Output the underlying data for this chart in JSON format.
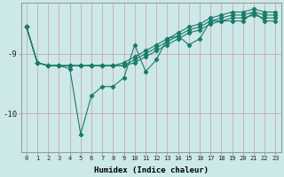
{
  "xlabel": "Humidex (Indice chaleur)",
  "background_color": "#cce8e8",
  "line_color": "#1a7a6a",
  "xlim": [
    -0.5,
    23.5
  ],
  "ylim": [
    -10.65,
    -8.15
  ],
  "yticks": [
    -10,
    -9
  ],
  "xticks": [
    0,
    1,
    2,
    3,
    4,
    5,
    6,
    7,
    8,
    9,
    10,
    11,
    12,
    13,
    14,
    15,
    16,
    17,
    18,
    19,
    20,
    21,
    22,
    23
  ],
  "series": [
    [
      -8.55,
      -9.15,
      -9.2,
      -9.2,
      -9.25,
      -10.35,
      -9.7,
      -9.55,
      -9.55,
      -9.4,
      -8.85,
      -9.3,
      -9.1,
      -8.75,
      -8.7,
      -8.85,
      -8.75,
      -8.45,
      -8.45,
      -8.45,
      -8.45,
      -8.3,
      -8.45,
      -8.45
    ],
    [
      -8.55,
      -9.15,
      -9.2,
      -9.2,
      -9.2,
      -9.2,
      -9.2,
      -9.2,
      -9.2,
      -9.2,
      -9.15,
      -9.05,
      -8.95,
      -8.85,
      -8.75,
      -8.65,
      -8.6,
      -8.5,
      -8.45,
      -8.4,
      -8.4,
      -8.35,
      -8.4,
      -8.4
    ],
    [
      -8.55,
      -9.15,
      -9.2,
      -9.2,
      -9.2,
      -9.2,
      -9.2,
      -9.2,
      -9.2,
      -9.2,
      -9.1,
      -9.0,
      -8.9,
      -8.8,
      -8.7,
      -8.6,
      -8.55,
      -8.45,
      -8.4,
      -8.35,
      -8.35,
      -8.3,
      -8.35,
      -8.35
    ],
    [
      -8.55,
      -9.15,
      -9.2,
      -9.2,
      -9.2,
      -9.2,
      -9.2,
      -9.2,
      -9.2,
      -9.15,
      -9.05,
      -8.95,
      -8.85,
      -8.75,
      -8.65,
      -8.55,
      -8.5,
      -8.4,
      -8.35,
      -8.3,
      -8.3,
      -8.25,
      -8.3,
      -8.3
    ]
  ]
}
